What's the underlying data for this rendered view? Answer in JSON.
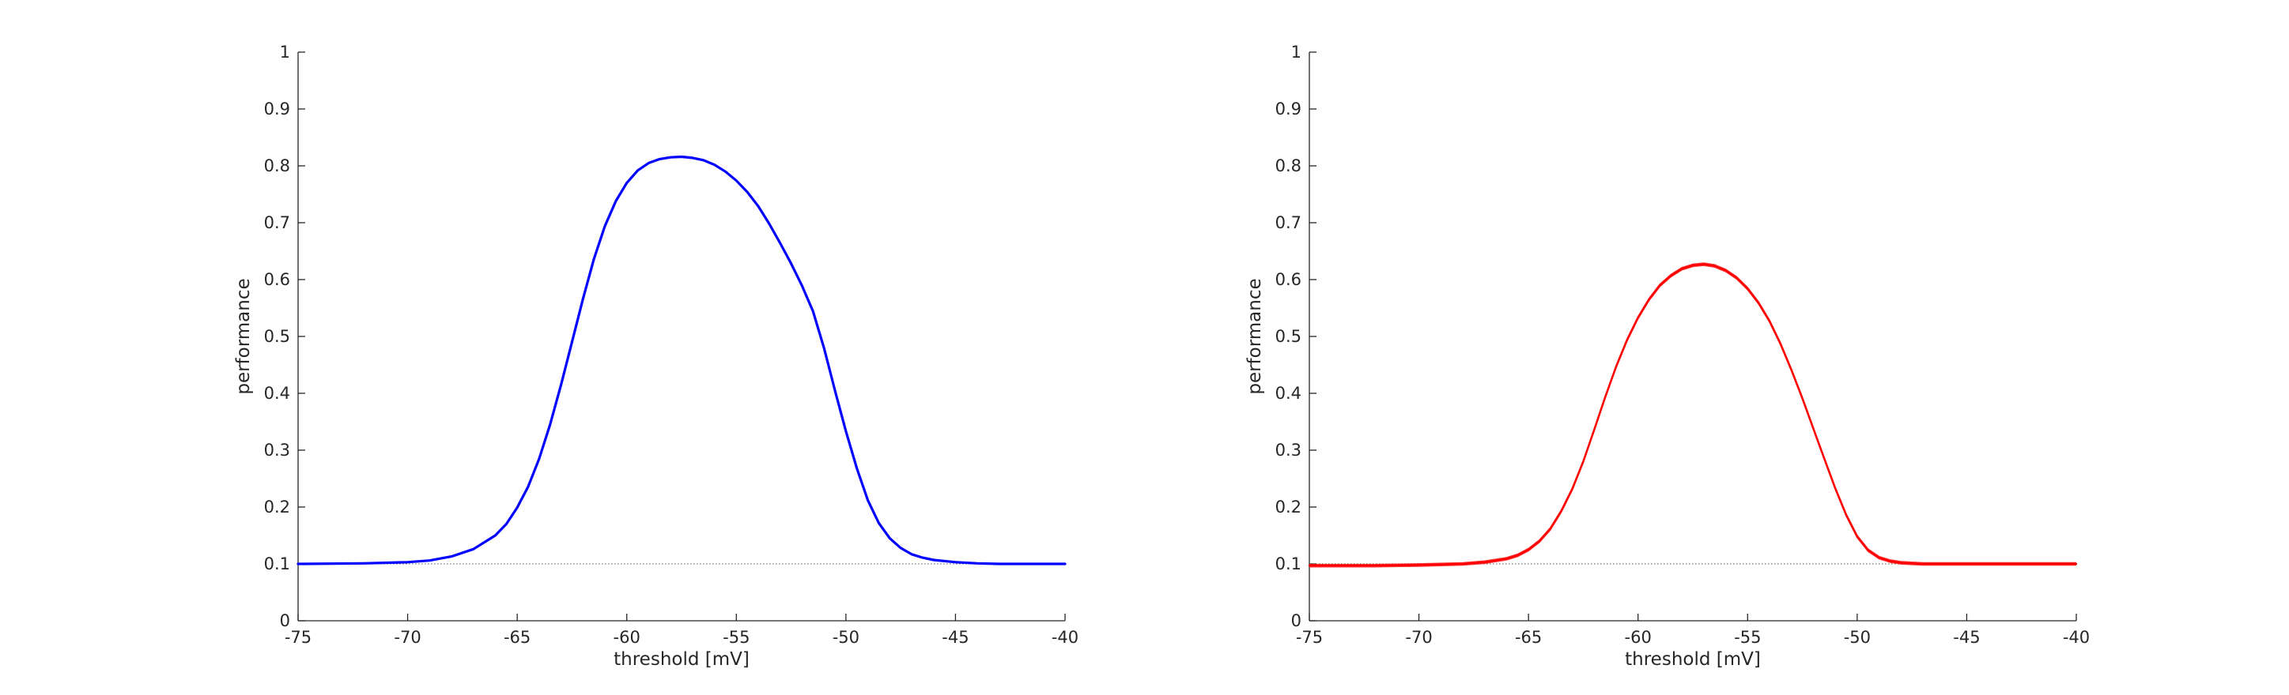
{
  "chart_data": [
    {
      "type": "line",
      "title": "",
      "xlabel": "threshold [mV]",
      "ylabel": "performance",
      "xlim": [
        -75,
        -40
      ],
      "ylim": [
        0,
        1
      ],
      "xticks": [
        -75,
        -70,
        -65,
        -60,
        -55,
        -50,
        -45,
        -40
      ],
      "yticks": [
        0,
        0.1,
        0.2,
        0.3,
        0.4,
        0.5,
        0.6,
        0.7,
        0.8,
        0.9,
        1
      ],
      "xtick_labels": [
        "-75",
        "-70",
        "-65",
        "-60",
        "-55",
        "-50",
        "-45",
        "-40"
      ],
      "ytick_labels": [
        "0",
        "0.1",
        "0.2",
        "0.3",
        "0.4",
        "0.5",
        "0.6",
        "0.7",
        "0.8",
        "0.9",
        "1"
      ],
      "grid": false,
      "legend": "none",
      "color": "#0000ff",
      "baseline": {
        "y": 0.1,
        "style": "dotted",
        "color": "#555555"
      },
      "series": [
        {
          "x": [
            -75,
            -72,
            -70,
            -69,
            -68,
            -67,
            -66,
            -65.5,
            -65,
            -64.5,
            -64,
            -63.5,
            -63,
            -62.5,
            -62,
            -61.5,
            -61,
            -60.5,
            -60,
            -59.5,
            -59,
            -58.5,
            -58,
            -57.5,
            -57,
            -56.5,
            -56,
            -55.5,
            -55,
            -54.5,
            -54,
            -53.5,
            -53,
            -52.5,
            -52,
            -51.5,
            -51,
            -50.5,
            -50,
            -49.5,
            -49,
            -48.5,
            -48,
            -47.5,
            -47,
            -46.5,
            -46,
            -45,
            -44,
            -43,
            -42,
            -40
          ],
          "values": [
            0.1,
            0.101,
            0.103,
            0.106,
            0.113,
            0.126,
            0.15,
            0.17,
            0.199,
            0.236,
            0.285,
            0.345,
            0.415,
            0.49,
            0.566,
            0.636,
            0.694,
            0.738,
            0.77,
            0.792,
            0.805,
            0.812,
            0.815,
            0.816,
            0.814,
            0.81,
            0.802,
            0.79,
            0.774,
            0.754,
            0.729,
            0.698,
            0.664,
            0.628,
            0.589,
            0.544,
            0.48,
            0.405,
            0.333,
            0.268,
            0.212,
            0.172,
            0.145,
            0.128,
            0.117,
            0.111,
            0.107,
            0.103,
            0.101,
            0.1,
            0.1,
            0.1
          ]
        }
      ]
    },
    {
      "type": "line",
      "title": "",
      "xlabel": "threshold [mV]",
      "ylabel": "performance",
      "xlim": [
        -75,
        -40
      ],
      "ylim": [
        0,
        1
      ],
      "xticks": [
        -75,
        -70,
        -65,
        -60,
        -55,
        -50,
        -45,
        -40
      ],
      "yticks": [
        0,
        0.1,
        0.2,
        0.3,
        0.4,
        0.5,
        0.6,
        0.7,
        0.8,
        0.9,
        1
      ],
      "xtick_labels": [
        "-75",
        "-70",
        "-65",
        "-60",
        "-55",
        "-50",
        "-45",
        "-40"
      ],
      "ytick_labels": [
        "0",
        "0.1",
        "0.2",
        "0.3",
        "0.4",
        "0.5",
        "0.6",
        "0.7",
        "0.8",
        "0.9",
        "1"
      ],
      "grid": false,
      "legend": "none",
      "color": "#ff0000",
      "baseline": {
        "y": 0.1,
        "style": "dotted",
        "color": "#555555"
      },
      "series": [
        {
          "x": [
            -75,
            -72,
            -70,
            -68,
            -67,
            -66,
            -65.5,
            -65,
            -64.5,
            -64,
            -63.5,
            -63,
            -62.5,
            -62,
            -61.5,
            -61,
            -60.5,
            -60,
            -59.5,
            -59,
            -58.5,
            -58,
            -57.5,
            -57,
            -56.5,
            -56,
            -55.5,
            -55,
            -54.5,
            -54,
            -53.5,
            -53,
            -52.5,
            -52,
            -51.5,
            -51,
            -50.5,
            -50,
            -49.5,
            -49,
            -48.5,
            -48,
            -47,
            -46,
            -45,
            -40
          ],
          "values": [
            0.097,
            0.097,
            0.098,
            0.1,
            0.103,
            0.109,
            0.115,
            0.125,
            0.14,
            0.162,
            0.193,
            0.232,
            0.28,
            0.336,
            0.393,
            0.447,
            0.494,
            0.533,
            0.565,
            0.59,
            0.607,
            0.619,
            0.625,
            0.627,
            0.624,
            0.616,
            0.603,
            0.584,
            0.559,
            0.527,
            0.487,
            0.441,
            0.391,
            0.338,
            0.285,
            0.233,
            0.186,
            0.148,
            0.124,
            0.111,
            0.105,
            0.102,
            0.1,
            0.1,
            0.1,
            0.1
          ]
        }
      ]
    }
  ]
}
